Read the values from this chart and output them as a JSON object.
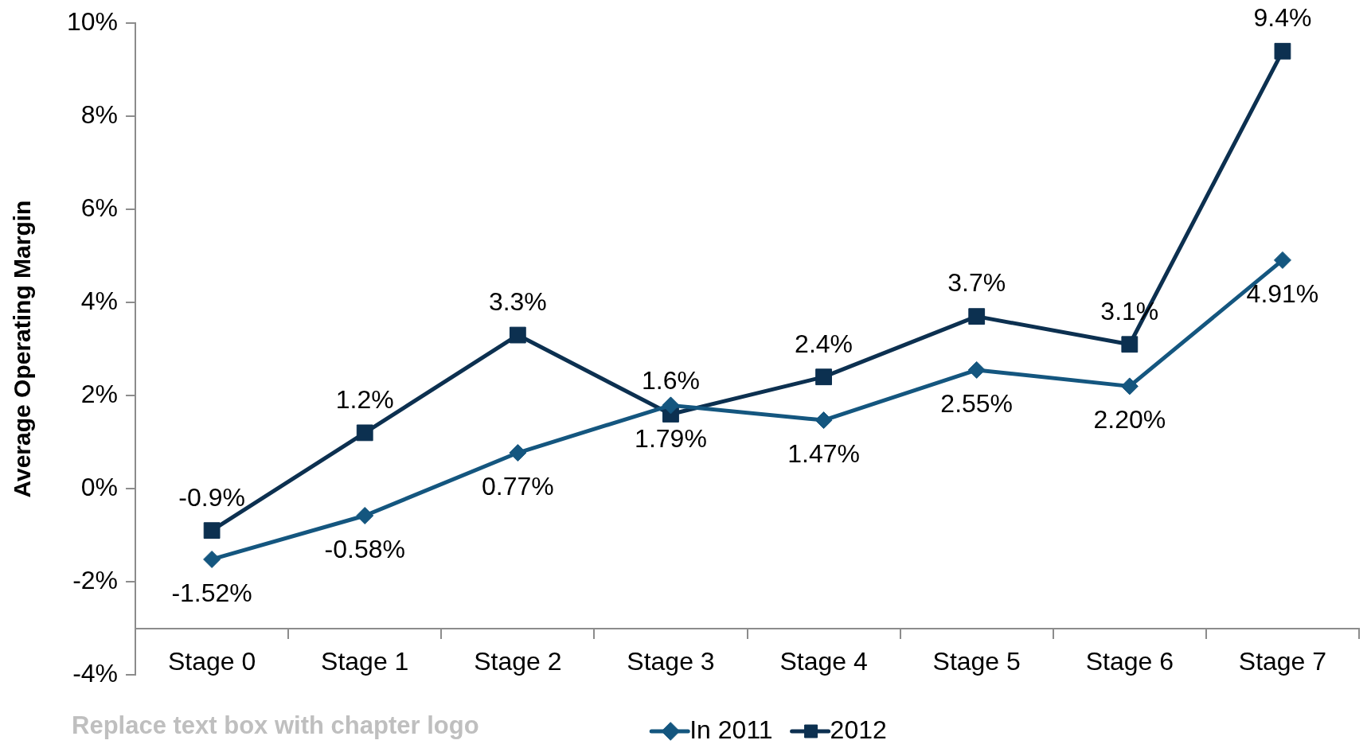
{
  "chart_data": {
    "type": "line",
    "ylabel": "Average Operating Margin",
    "categories": [
      "Stage 0",
      "Stage 1",
      "Stage 2",
      "Stage 3",
      "Stage 4",
      "Stage 5",
      "Stage 6",
      "Stage 7"
    ],
    "series": [
      {
        "name": "In 2011",
        "color": "#14567f",
        "marker": "diamond",
        "values": [
          -1.52,
          -0.58,
          0.77,
          1.79,
          1.47,
          2.55,
          2.2,
          4.91
        ],
        "value_labels": [
          "-1.52%",
          "-0.58%",
          "0.77%",
          "1.79%",
          "1.47%",
          "2.55%",
          "2.20%",
          "4.91%"
        ]
      },
      {
        "name": "2012",
        "color": "#0c3050",
        "marker": "square",
        "values": [
          -0.9,
          1.2,
          3.3,
          1.6,
          2.4,
          3.7,
          3.1,
          9.4
        ],
        "value_labels": [
          "-0.9%",
          "1.2%",
          "3.3%",
          "1.6%",
          "2.4%",
          "3.7%",
          "3.1%",
          "9.4%"
        ]
      }
    ],
    "ylim": [
      -4,
      10
    ],
    "yticks": [
      {
        "value": -4,
        "label": "-4%"
      },
      {
        "value": -2,
        "label": "-2%"
      },
      {
        "value": 0,
        "label": "0%"
      },
      {
        "value": 2,
        "label": "2%"
      },
      {
        "value": 4,
        "label": "4%"
      },
      {
        "value": 6,
        "label": "6%"
      },
      {
        "value": 8,
        "label": "8%"
      },
      {
        "value": 10,
        "label": "10%"
      }
    ],
    "legend": "bottom",
    "annotations": [
      "Replace text box with chapter logo"
    ]
  }
}
